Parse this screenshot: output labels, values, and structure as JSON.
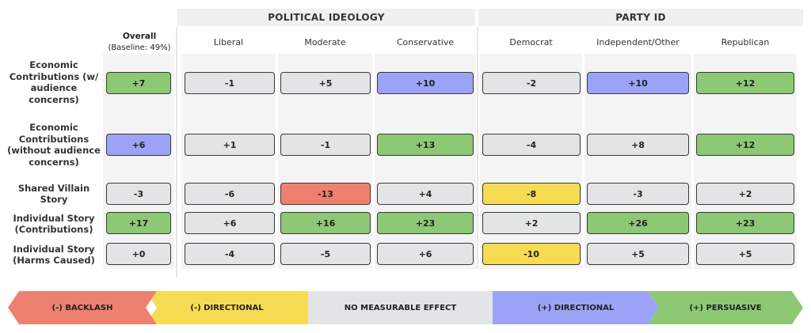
{
  "groups": {
    "ideology": "POLITICAL IDEOLOGY",
    "party": "PARTY ID"
  },
  "overall": {
    "label": "Overall",
    "baseline": "(Baseline: 49%)"
  },
  "columns": [
    "Liberal",
    "Moderate",
    "Conservative",
    "Democrat",
    "Independent/Other",
    "Republican"
  ],
  "rows": [
    "Economic Contributions (w/ audience concerns)",
    "Economic Contributions (without audience concerns)",
    "Shared Villain Story",
    "Individual Story (Contributions)",
    "Individual Story (Harms Caused)"
  ],
  "legend": [
    {
      "label": "(-) BACKLASH",
      "color": "#ee8070"
    },
    {
      "label": "(-) DIRECTIONAL",
      "color": "#f6dc52"
    },
    {
      "label": "NO MEASURABLE EFFECT",
      "color": "#e2e4e6"
    },
    {
      "label": "(+) DIRECTIONAL",
      "color": "#9aa3f5"
    },
    {
      "label": "(+) PERSUASIVE",
      "color": "#8dc875"
    }
  ],
  "chart_data": {
    "type": "table",
    "value_columns": [
      "Overall",
      "Liberal",
      "Moderate",
      "Conservative",
      "Democrat",
      "Independent/Other",
      "Republican"
    ],
    "row_labels": [
      "Economic Contributions (w/ audience concerns)",
      "Economic Contributions (without audience concerns)",
      "Shared Villain Story",
      "Individual Story (Contributions)",
      "Individual Story (Harms Caused)"
    ],
    "values": [
      [
        "+7",
        "-1",
        "+5",
        "+10",
        "-2",
        "+10",
        "+12"
      ],
      [
        "+6",
        "+1",
        "-1",
        "+13",
        "-4",
        "+8",
        "+12"
      ],
      [
        "-3",
        "-6",
        "-13",
        "+4",
        "-8",
        "-3",
        "+2"
      ],
      [
        "+17",
        "+6",
        "+16",
        "+23",
        "+2",
        "+26",
        "+23"
      ],
      [
        "+0",
        "-4",
        "-5",
        "+6",
        "-10",
        "+5",
        "+5"
      ]
    ],
    "categories": [
      [
        "persuasive",
        "none",
        "none",
        "pos_directional",
        "none",
        "pos_directional",
        "persuasive"
      ],
      [
        "pos_directional",
        "none",
        "none",
        "persuasive",
        "none",
        "none",
        "persuasive"
      ],
      [
        "none",
        "none",
        "backlash",
        "none",
        "neg_directional",
        "none",
        "none"
      ],
      [
        "persuasive",
        "none",
        "persuasive",
        "persuasive",
        "none",
        "persuasive",
        "persuasive"
      ],
      [
        "none",
        "none",
        "none",
        "none",
        "neg_directional",
        "none",
        "none"
      ]
    ],
    "category_colors": {
      "backlash": "#ee8070",
      "neg_directional": "#f6dc52",
      "none": "#e2e4e6",
      "pos_directional": "#9aa3f5",
      "persuasive": "#8dc875"
    }
  }
}
